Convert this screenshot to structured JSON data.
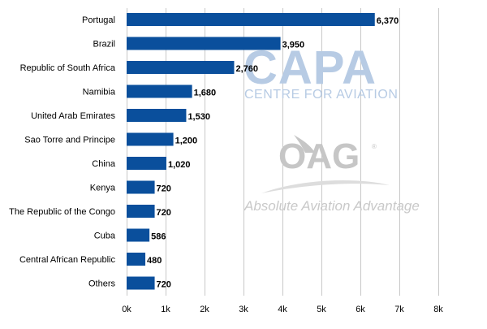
{
  "chart_data": {
    "type": "bar",
    "orientation": "horizontal",
    "categories": [
      "Portugal",
      "Brazil",
      "Republic of South Africa",
      "Namibia",
      "United Arab Emirates",
      "Sao Torre and Principe",
      "China",
      "Kenya",
      "The Republic of the Congo",
      "Cuba",
      "Central African Republic",
      "Others"
    ],
    "values": [
      6370,
      3950,
      2760,
      1680,
      1530,
      1200,
      1020,
      720,
      720,
      586,
      480,
      720
    ],
    "value_labels": [
      "6,370",
      "3,950",
      "2,760",
      "1,680",
      "1,530",
      "1,200",
      "1,020",
      "720",
      "720",
      "586",
      "480",
      "720"
    ],
    "xlim": [
      0,
      8000
    ],
    "x_ticks": [
      0,
      1000,
      2000,
      3000,
      4000,
      5000,
      6000,
      7000,
      8000
    ],
    "x_tick_labels": [
      "0k",
      "1k",
      "2k",
      "3k",
      "4k",
      "5k",
      "6k",
      "7k",
      "8k"
    ],
    "title": "",
    "xlabel": "",
    "ylabel": "",
    "grid": true,
    "legend": "none",
    "bar_color": "#0a4f9c",
    "grid_color": "#c8c8c8"
  },
  "watermarks": {
    "capa_title": "CAPA",
    "capa_subtitle": "CENTRE FOR AVIATION",
    "oag_title": "OAG",
    "oag_registered": "®",
    "oag_tagline": "Absolute Aviation Advantage",
    "capa_color": "#b7cbe4",
    "oag_color": "#c6c6c6"
  }
}
